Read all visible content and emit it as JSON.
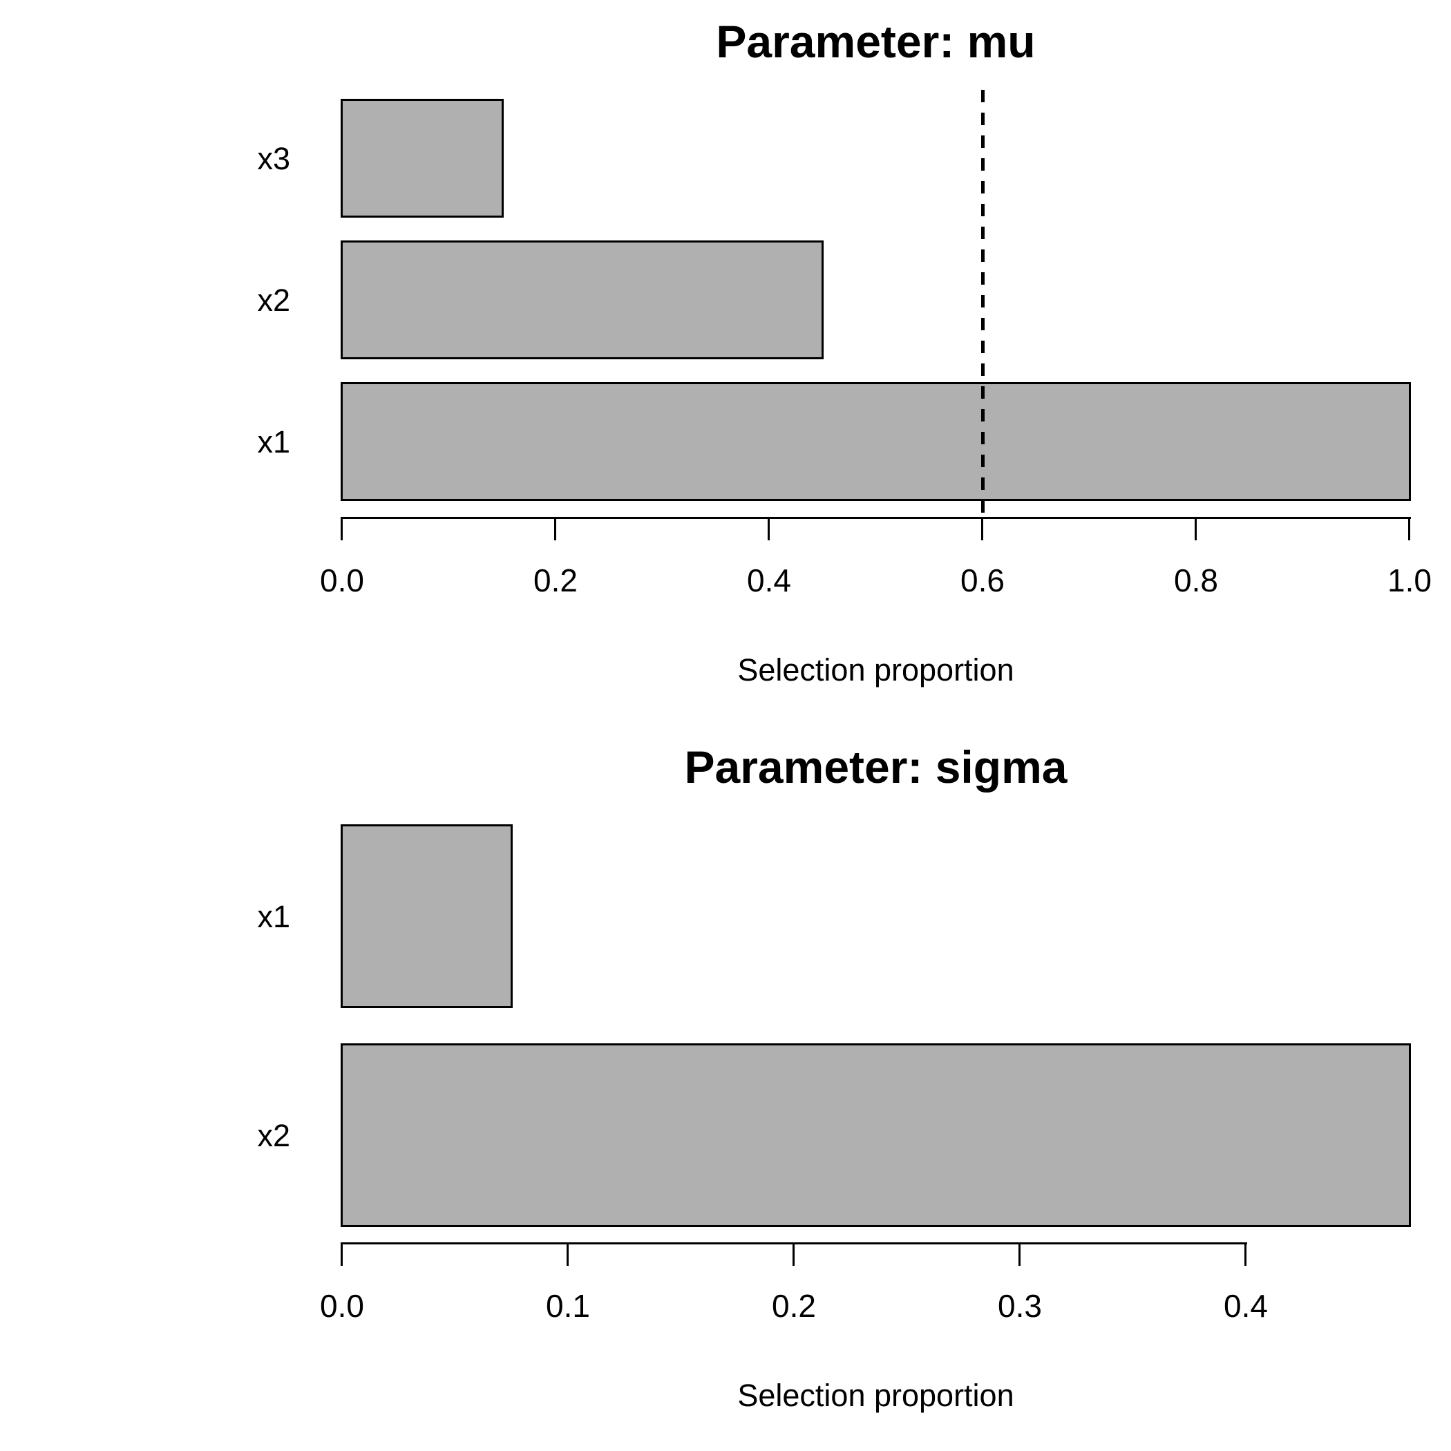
{
  "page": {
    "background": "#ffffff",
    "text_color": "#000000"
  },
  "chart_data": [
    {
      "type": "bar",
      "orientation": "horizontal",
      "title": "Parameter: mu",
      "categories": [
        "x3",
        "x2",
        "x1"
      ],
      "values": [
        0.15,
        0.45,
        1.0
      ],
      "xlabel": "Selection proportion",
      "xtick_labels": [
        "0.0",
        "0.2",
        "0.4",
        "0.6",
        "0.8",
        "1.0"
      ],
      "xtick_values": [
        0,
        0.2,
        0.4,
        0.6,
        0.8,
        1.0
      ],
      "xlim": [
        0,
        1.0
      ],
      "cutoff_line": 0.6,
      "cutoff_style": "dashed",
      "bar_fill": "#b0b0b0",
      "bar_border": "#000000",
      "axis_color": "#000000",
      "grid": false,
      "legend": false
    },
    {
      "type": "bar",
      "orientation": "horizontal",
      "title": "Parameter: sigma",
      "categories": [
        "x1",
        "x2"
      ],
      "values": [
        0.075,
        0.4725
      ],
      "xlabel": "Selection proportion",
      "xtick_labels": [
        "0.0",
        "0.1",
        "0.2",
        "0.3",
        "0.4"
      ],
      "xtick_values": [
        0,
        0.1,
        0.2,
        0.3,
        0.4
      ],
      "xlim": [
        0,
        0.4725
      ],
      "cutoff_line": null,
      "cutoff_style": null,
      "bar_fill": "#b0b0b0",
      "bar_border": "#000000",
      "axis_color": "#000000",
      "grid": false,
      "legend": false
    }
  ]
}
